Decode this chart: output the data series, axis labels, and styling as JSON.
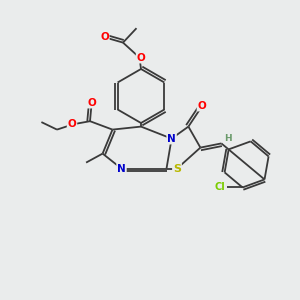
{
  "background_color": "#eaecec",
  "bond_color": "#3a3a3a",
  "atom_colors": {
    "O": "#ff0000",
    "N": "#0000cc",
    "S": "#b8b800",
    "Cl": "#7acc00",
    "C": "#3a3a3a",
    "H": "#6a9a6a"
  },
  "figsize": [
    3.0,
    3.0
  ],
  "dpi": 100,
  "lw": 1.3
}
